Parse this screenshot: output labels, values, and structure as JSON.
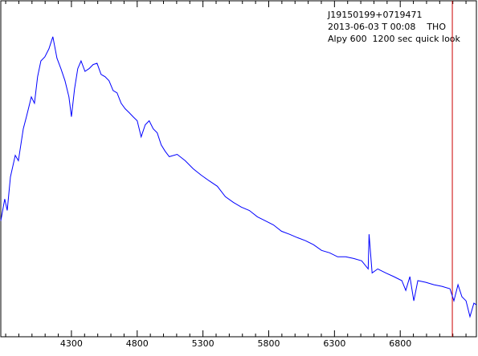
{
  "chart_data": {
    "type": "line",
    "title_lines": [
      "J19150199+0719471",
      "2013-06-03 T 00:08    THO",
      "Alpy 600  1200 sec quick look"
    ],
    "x": [
      3763,
      3793,
      3812,
      3836,
      3873,
      3897,
      3934,
      3958,
      3995,
      4019,
      4043,
      4068,
      4098,
      4129,
      4159,
      4190,
      4220,
      4251,
      4281,
      4300,
      4324,
      4348,
      4373,
      4403,
      4434,
      4464,
      4495,
      4525,
      4556,
      4586,
      4617,
      4647,
      4678,
      4708,
      4739,
      4769,
      4800,
      4830,
      4861,
      4891,
      4922,
      4952,
      4983,
      5013,
      5044,
      5104,
      5165,
      5226,
      5287,
      5348,
      5409,
      5470,
      5531,
      5592,
      5653,
      5714,
      5775,
      5836,
      5897,
      5958,
      6019,
      6080,
      6141,
      6202,
      6263,
      6324,
      6385,
      6446,
      6507,
      6556,
      6563,
      6586,
      6629,
      6690,
      6751,
      6812,
      6842,
      6873,
      6903,
      6934,
      6995,
      7056,
      7117,
      7178,
      7208,
      7239,
      7269,
      7300,
      7330,
      7360,
      7379
    ],
    "series": [
      {
        "color": "#0000ff",
        "values": [
          0.345,
          0.41,
          0.376,
          0.476,
          0.54,
          0.524,
          0.619,
          0.655,
          0.714,
          0.695,
          0.774,
          0.821,
          0.833,
          0.857,
          0.893,
          0.829,
          0.798,
          0.762,
          0.714,
          0.655,
          0.738,
          0.798,
          0.821,
          0.79,
          0.798,
          0.81,
          0.814,
          0.781,
          0.774,
          0.762,
          0.733,
          0.726,
          0.695,
          0.679,
          0.667,
          0.655,
          0.643,
          0.595,
          0.631,
          0.643,
          0.619,
          0.607,
          0.571,
          0.552,
          0.536,
          0.543,
          0.524,
          0.5,
          0.481,
          0.464,
          0.448,
          0.417,
          0.4,
          0.386,
          0.376,
          0.357,
          0.345,
          0.333,
          0.314,
          0.305,
          0.295,
          0.286,
          0.274,
          0.257,
          0.25,
          0.238,
          0.238,
          0.233,
          0.226,
          0.202,
          0.305,
          0.19,
          0.202,
          0.19,
          0.179,
          0.167,
          0.138,
          0.179,
          0.107,
          0.167,
          0.162,
          0.155,
          0.15,
          0.143,
          0.107,
          0.155,
          0.119,
          0.107,
          0.06,
          0.1,
          0.095
        ]
      }
    ],
    "xlim": [
      3763,
      7379
    ],
    "ylim": [
      0,
      1
    ],
    "xticks": [
      4300,
      4800,
      5300,
      5800,
      6300,
      6800
    ],
    "xminorticks": [
      3800,
      3900,
      4000,
      4100,
      4200,
      4400,
      4500,
      4600,
      4700,
      4900,
      5000,
      5100,
      5200,
      5400,
      5500,
      5600,
      5700,
      5900,
      6000,
      6100,
      6200,
      6400,
      6500,
      6600,
      6700,
      6900,
      7000,
      7100,
      7200,
      7300
    ],
    "marker_x": 7196,
    "marker_color": "#cc0000"
  }
}
